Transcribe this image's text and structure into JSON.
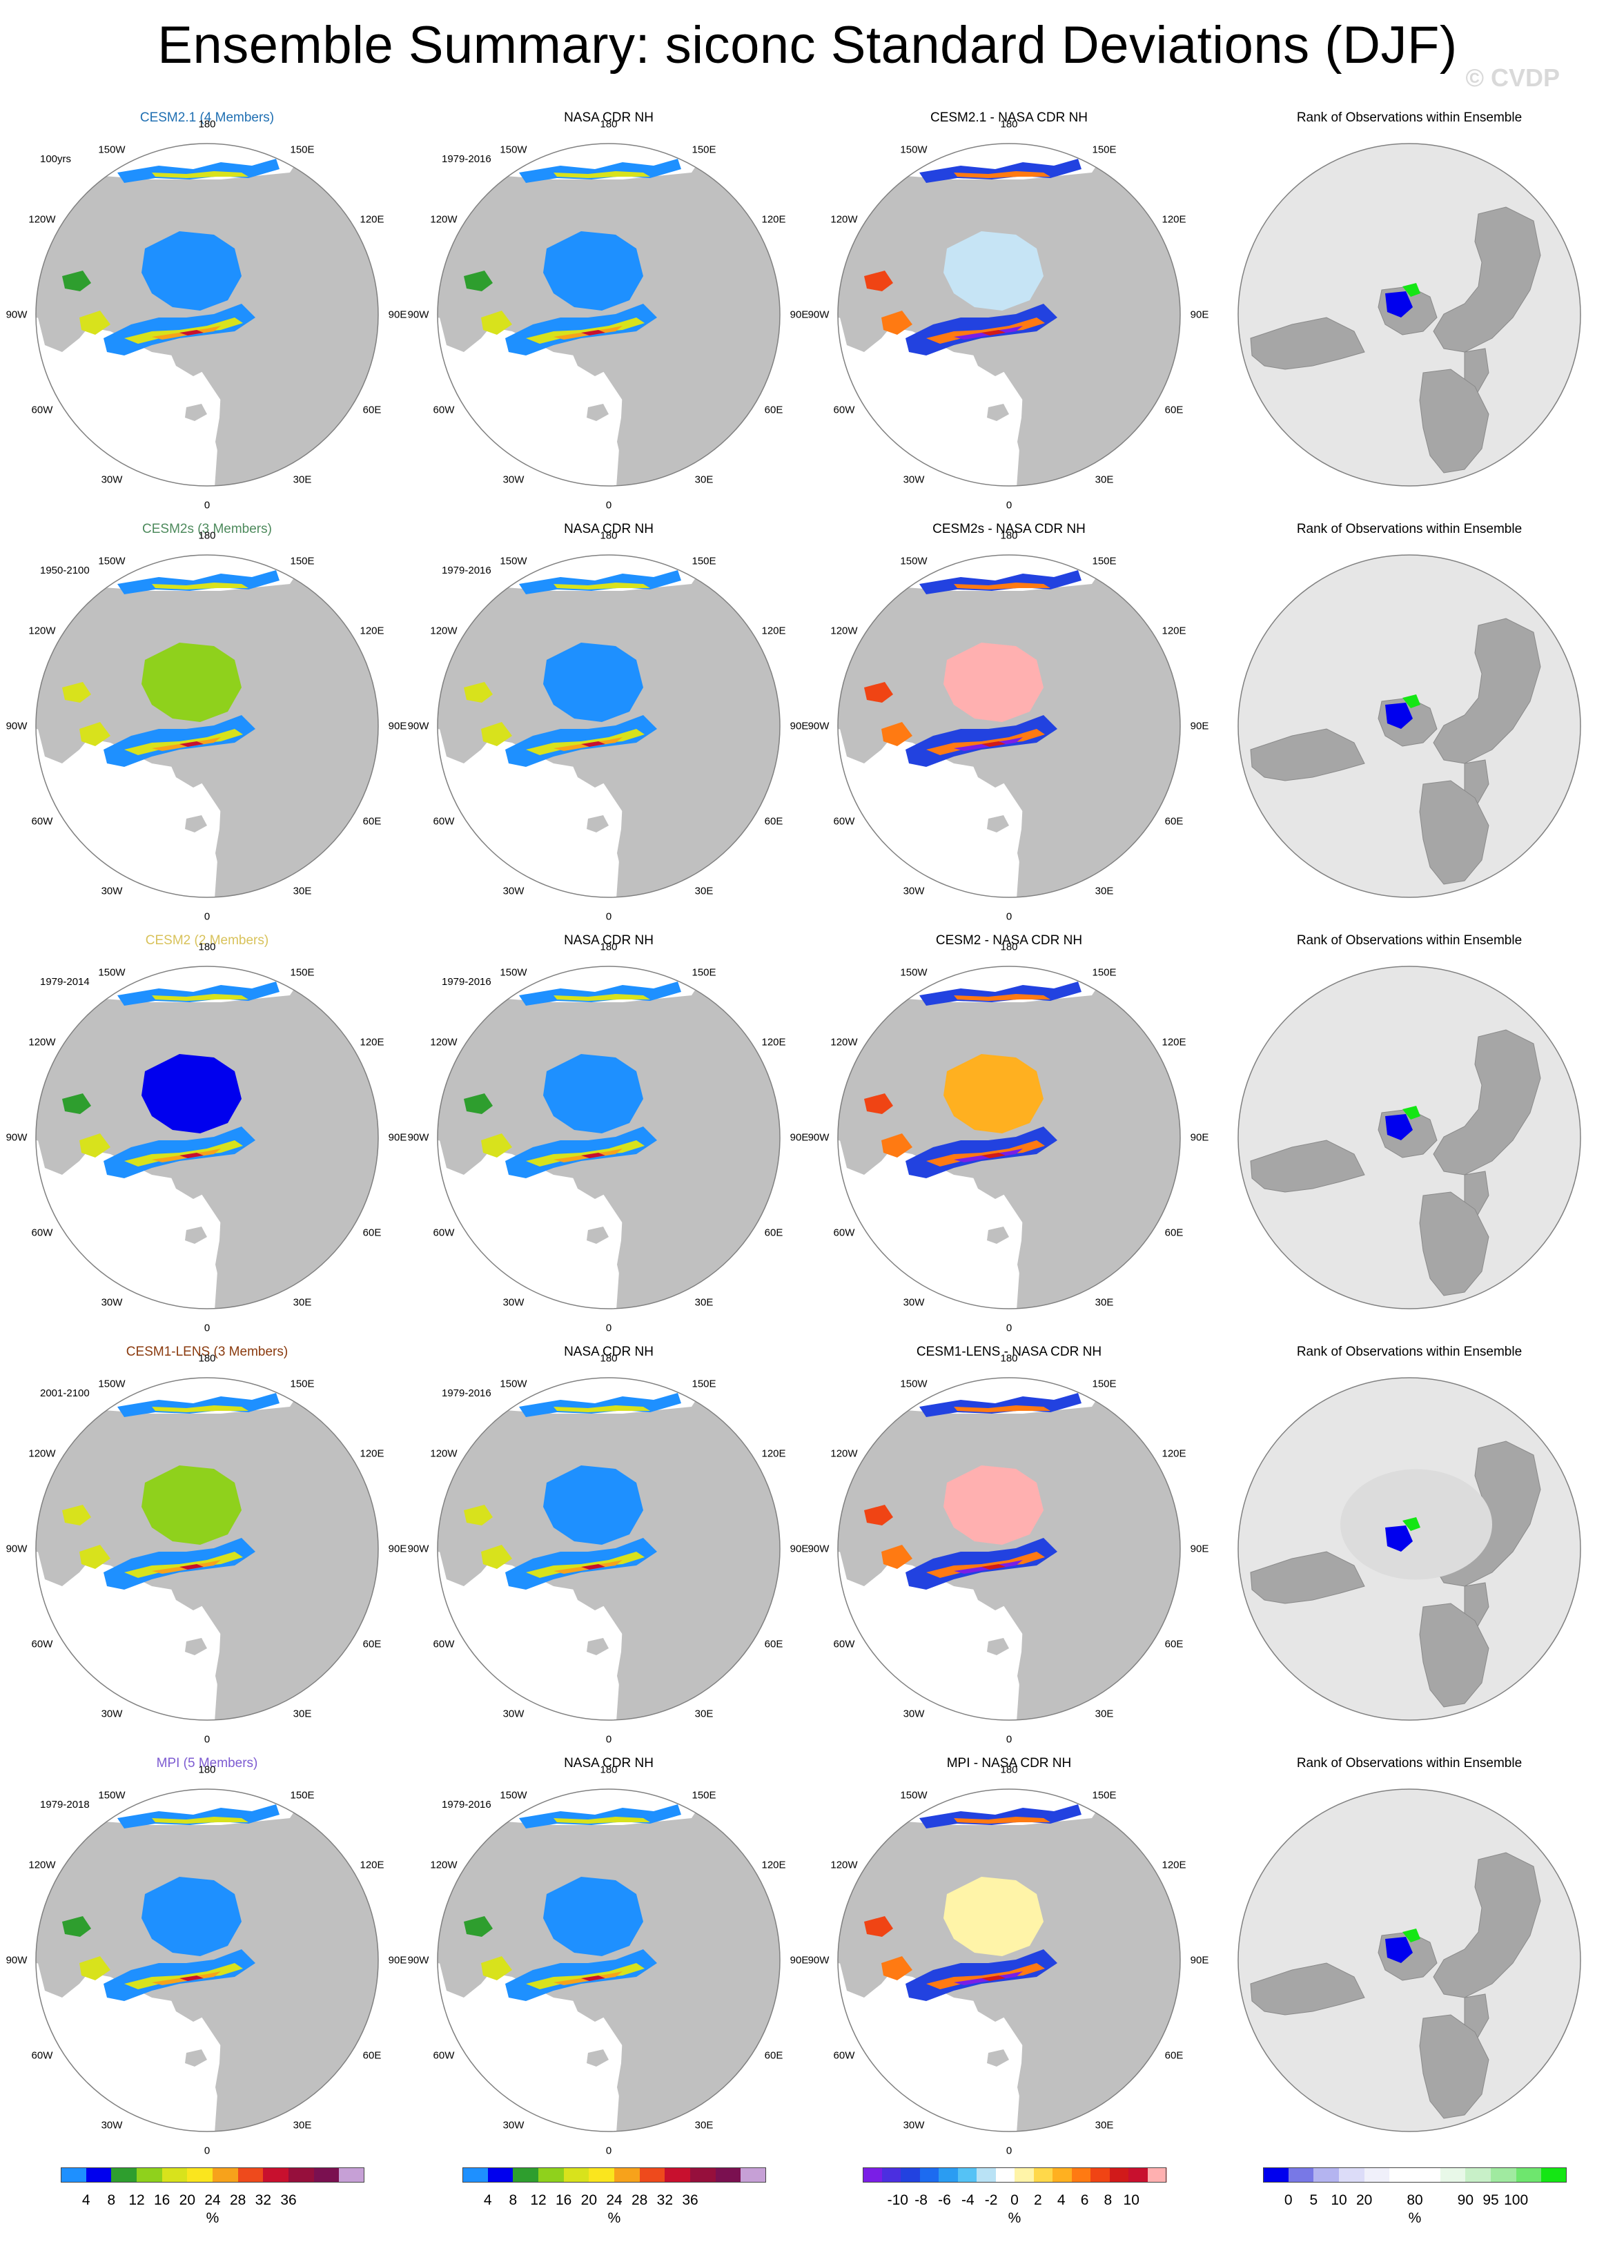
{
  "title": "Ensemble Summary: siconc Standard Deviations (DJF)",
  "watermark": "© CVDP",
  "colors": {
    "ocean": "#ffffff",
    "land": "#c0c0c0",
    "rank_bg": "#e6e6e6",
    "rank_land": "#a6a6a6",
    "border": "#808080"
  },
  "lon_labels": [
    "180",
    "150E",
    "120E",
    "90E",
    "60E",
    "30E",
    "0",
    "30W",
    "60W",
    "90W",
    "120W",
    "150W"
  ],
  "rows": [
    {
      "model_title": "CESM2.1 (4 Members)",
      "title_color": "#1f6fb2",
      "period": "100yrs",
      "obs_title": "NASA CDR NH",
      "obs_period": "1979-2016",
      "diff_title": "CESM2.1 - NASA CDR NH",
      "rank_title": "Rank of Observations within Ensemble"
    },
    {
      "model_title": "CESM2s (3 Members)",
      "title_color": "#4d8a5c",
      "period": "1950-2100",
      "obs_title": "NASA CDR NH",
      "obs_period": "1979-2016",
      "diff_title": "CESM2s - NASA CDR NH",
      "rank_title": "Rank of Observations within Ensemble"
    },
    {
      "model_title": "CESM2 (2 Members)",
      "title_color": "#d8c25a",
      "period": "1979-2014",
      "obs_title": "NASA CDR NH",
      "obs_period": "1979-2016",
      "diff_title": "CESM2 - NASA CDR NH",
      "rank_title": "Rank of Observations within Ensemble"
    },
    {
      "model_title": "CESM1-LENS (3 Members)",
      "title_color": "#8a3a0e",
      "period": "2001-2100",
      "obs_title": "NASA CDR NH",
      "obs_period": "1979-2016",
      "diff_title": "CESM1-LENS - NASA CDR NH",
      "rank_title": "Rank of Observations within Ensemble"
    },
    {
      "model_title": "MPI (5 Members)",
      "title_color": "#7d5bd1",
      "period": "1979-2018",
      "obs_title": "NASA CDR NH",
      "obs_period": "1979-2016",
      "diff_title": "MPI - NASA CDR NH",
      "rank_title": "Rank of Observations within Ensemble"
    }
  ],
  "colorbars": [
    {
      "name": "model",
      "unit": "%",
      "colors": [
        "#1e90ff",
        "#0000ee",
        "#2e9e2e",
        "#8fd11c",
        "#d8e21c",
        "#fae51e",
        "#f7a21b",
        "#ee4a1c",
        "#c8102e",
        "#960f3c",
        "#7a1050",
        "#c6a0d6"
      ],
      "ticks": [
        "4",
        "8",
        "12",
        "16",
        "20",
        "24",
        "28",
        "32",
        "36"
      ]
    },
    {
      "name": "obs",
      "unit": "%",
      "colors": [
        "#1e90ff",
        "#0000ee",
        "#2e9e2e",
        "#8fd11c",
        "#d8e21c",
        "#fae51e",
        "#f7a21b",
        "#ee4a1c",
        "#c8102e",
        "#960f3c",
        "#7a1050",
        "#c6a0d6"
      ],
      "ticks": [
        "4",
        "8",
        "12",
        "16",
        "20",
        "24",
        "28",
        "32",
        "36"
      ]
    },
    {
      "name": "diff",
      "unit": "%",
      "colors": [
        "#7a1ee6",
        "#4b2fe0",
        "#2242e0",
        "#1c6bf0",
        "#2a9cf2",
        "#55c2f5",
        "#b9e2f5",
        "#ffffff",
        "#fff4a8",
        "#ffd84a",
        "#ffb020",
        "#ff7a12",
        "#f04414",
        "#d11a1a",
        "#c8102e",
        "#ffb0b0"
      ],
      "ticks": [
        "-10",
        "-8",
        "-6",
        "-4",
        "-2",
        "0",
        "2",
        "4",
        "6",
        "8",
        "10"
      ]
    },
    {
      "name": "rank",
      "unit": "%",
      "colors": [
        "#0000ee",
        "#7878e6",
        "#b4b4f0",
        "#dcdcf8",
        "#f0f0fa",
        "#ffffff",
        "#ffffff",
        "#e8f8e8",
        "#c8f0c8",
        "#a0eaa0",
        "#6ee66e",
        "#14e614"
      ],
      "ticks": [
        "0",
        "5",
        "10",
        "20",
        "80",
        "90",
        "95",
        "100"
      ]
    }
  ]
}
